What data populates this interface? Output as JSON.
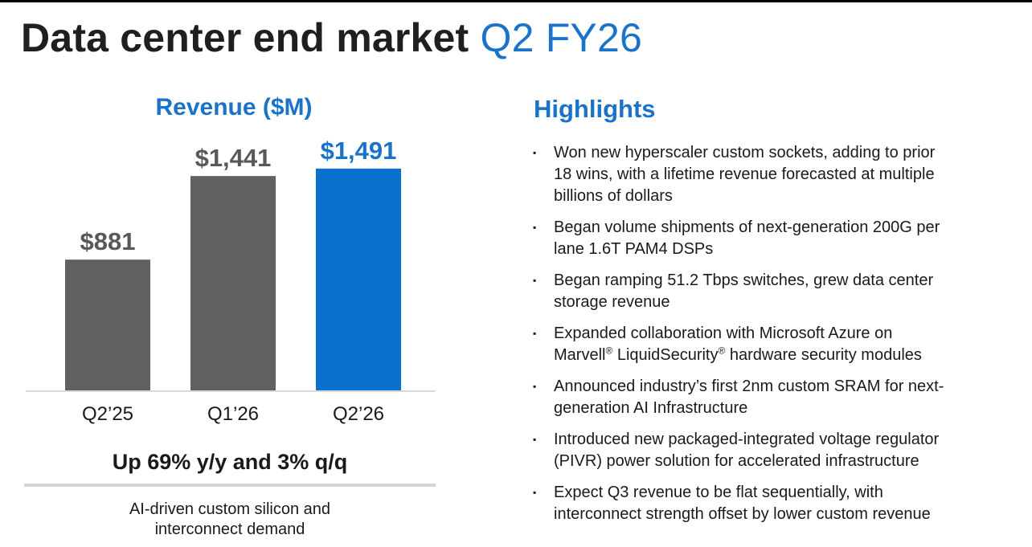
{
  "slide": {
    "title_main": "Data center end market",
    "title_accent": "Q2 FY26"
  },
  "chart_data": {
    "type": "bar",
    "title": "Revenue ($M)",
    "categories": [
      "Q2’25",
      "Q1’26",
      "Q2’26"
    ],
    "values": [
      881,
      1441,
      1491
    ],
    "data_labels": [
      "$881",
      "$1,441",
      "$1,491"
    ],
    "bar_colors": [
      "#5f6062",
      "#5f6062",
      "#0a72cc"
    ],
    "label_colors": [
      "#595959",
      "#595959",
      "#1a73c8"
    ],
    "ylim": [
      0,
      1700
    ],
    "xlabel": "",
    "ylabel": "",
    "grid": false
  },
  "growth": {
    "headline": "Up 69% y/y and 3% q/q",
    "note_line1": "AI-driven custom silicon and",
    "note_line2": "interconnect demand"
  },
  "highlights": {
    "title": "Highlights",
    "bullet_glyph": "▪",
    "items": [
      {
        "line1": "Won new hyperscaler custom sockets, adding to prior",
        "line2": "18 wins, with a lifetime revenue forecasted at multiple",
        "line3": "billions of dollars"
      },
      {
        "line1": "Began volume shipments of next-generation 200G per",
        "line2": "lane 1.6T PAM4 DSPs"
      },
      {
        "line1": "Began ramping 51.2 Tbps switches, grew data center",
        "line2": "storage revenue"
      },
      {
        "line1": "Expanded collaboration with Microsoft Azure on",
        "part_a": "Marvell",
        "reg1": "®",
        "part_b": " LiquidSecurity",
        "reg2": "®",
        "part_c": " hardware security modules"
      },
      {
        "line1": "Announced industry’s first 2nm custom SRAM for next-",
        "line2": "generation AI Infrastructure"
      },
      {
        "line1": "Introduced new packaged-integrated voltage regulator",
        "line2": "(PIVR) power solution for accelerated infrastructure"
      },
      {
        "line1": "Expect Q3 revenue to be flat sequentially, with",
        "line2": "interconnect strength offset by lower custom revenue"
      }
    ]
  }
}
